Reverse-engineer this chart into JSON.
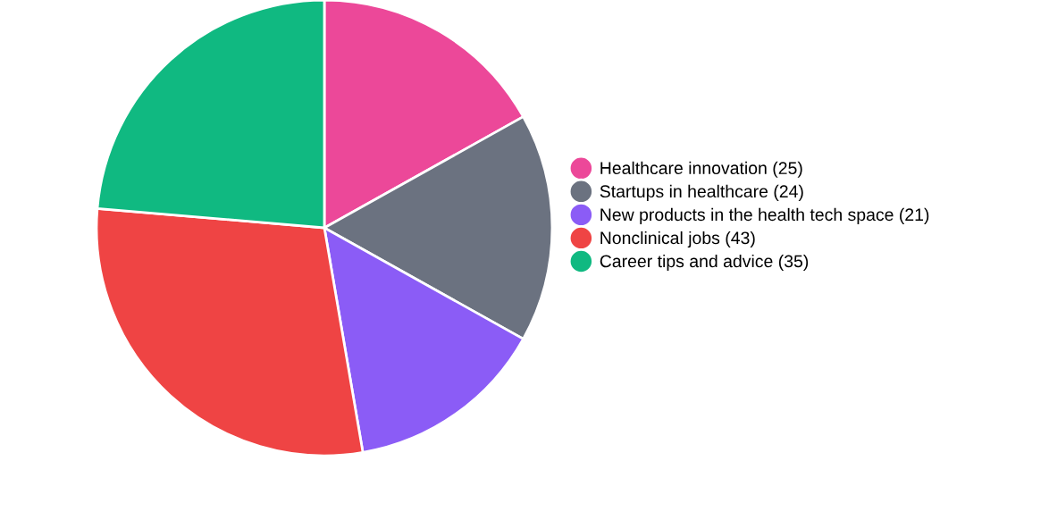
{
  "chart_data": {
    "type": "pie",
    "categories": [
      "Healthcare innovation (25)",
      "Startups in healthcare (24)",
      "New products in the health tech space (21)",
      "Nonclinical jobs (43)",
      "Career tips and advice (35)"
    ],
    "values": [
      25,
      24,
      21,
      43,
      35
    ],
    "colors": [
      "#ec4899",
      "#6b7280",
      "#8b5cf6",
      "#ef4444",
      "#10b981"
    ],
    "legend": "right"
  }
}
